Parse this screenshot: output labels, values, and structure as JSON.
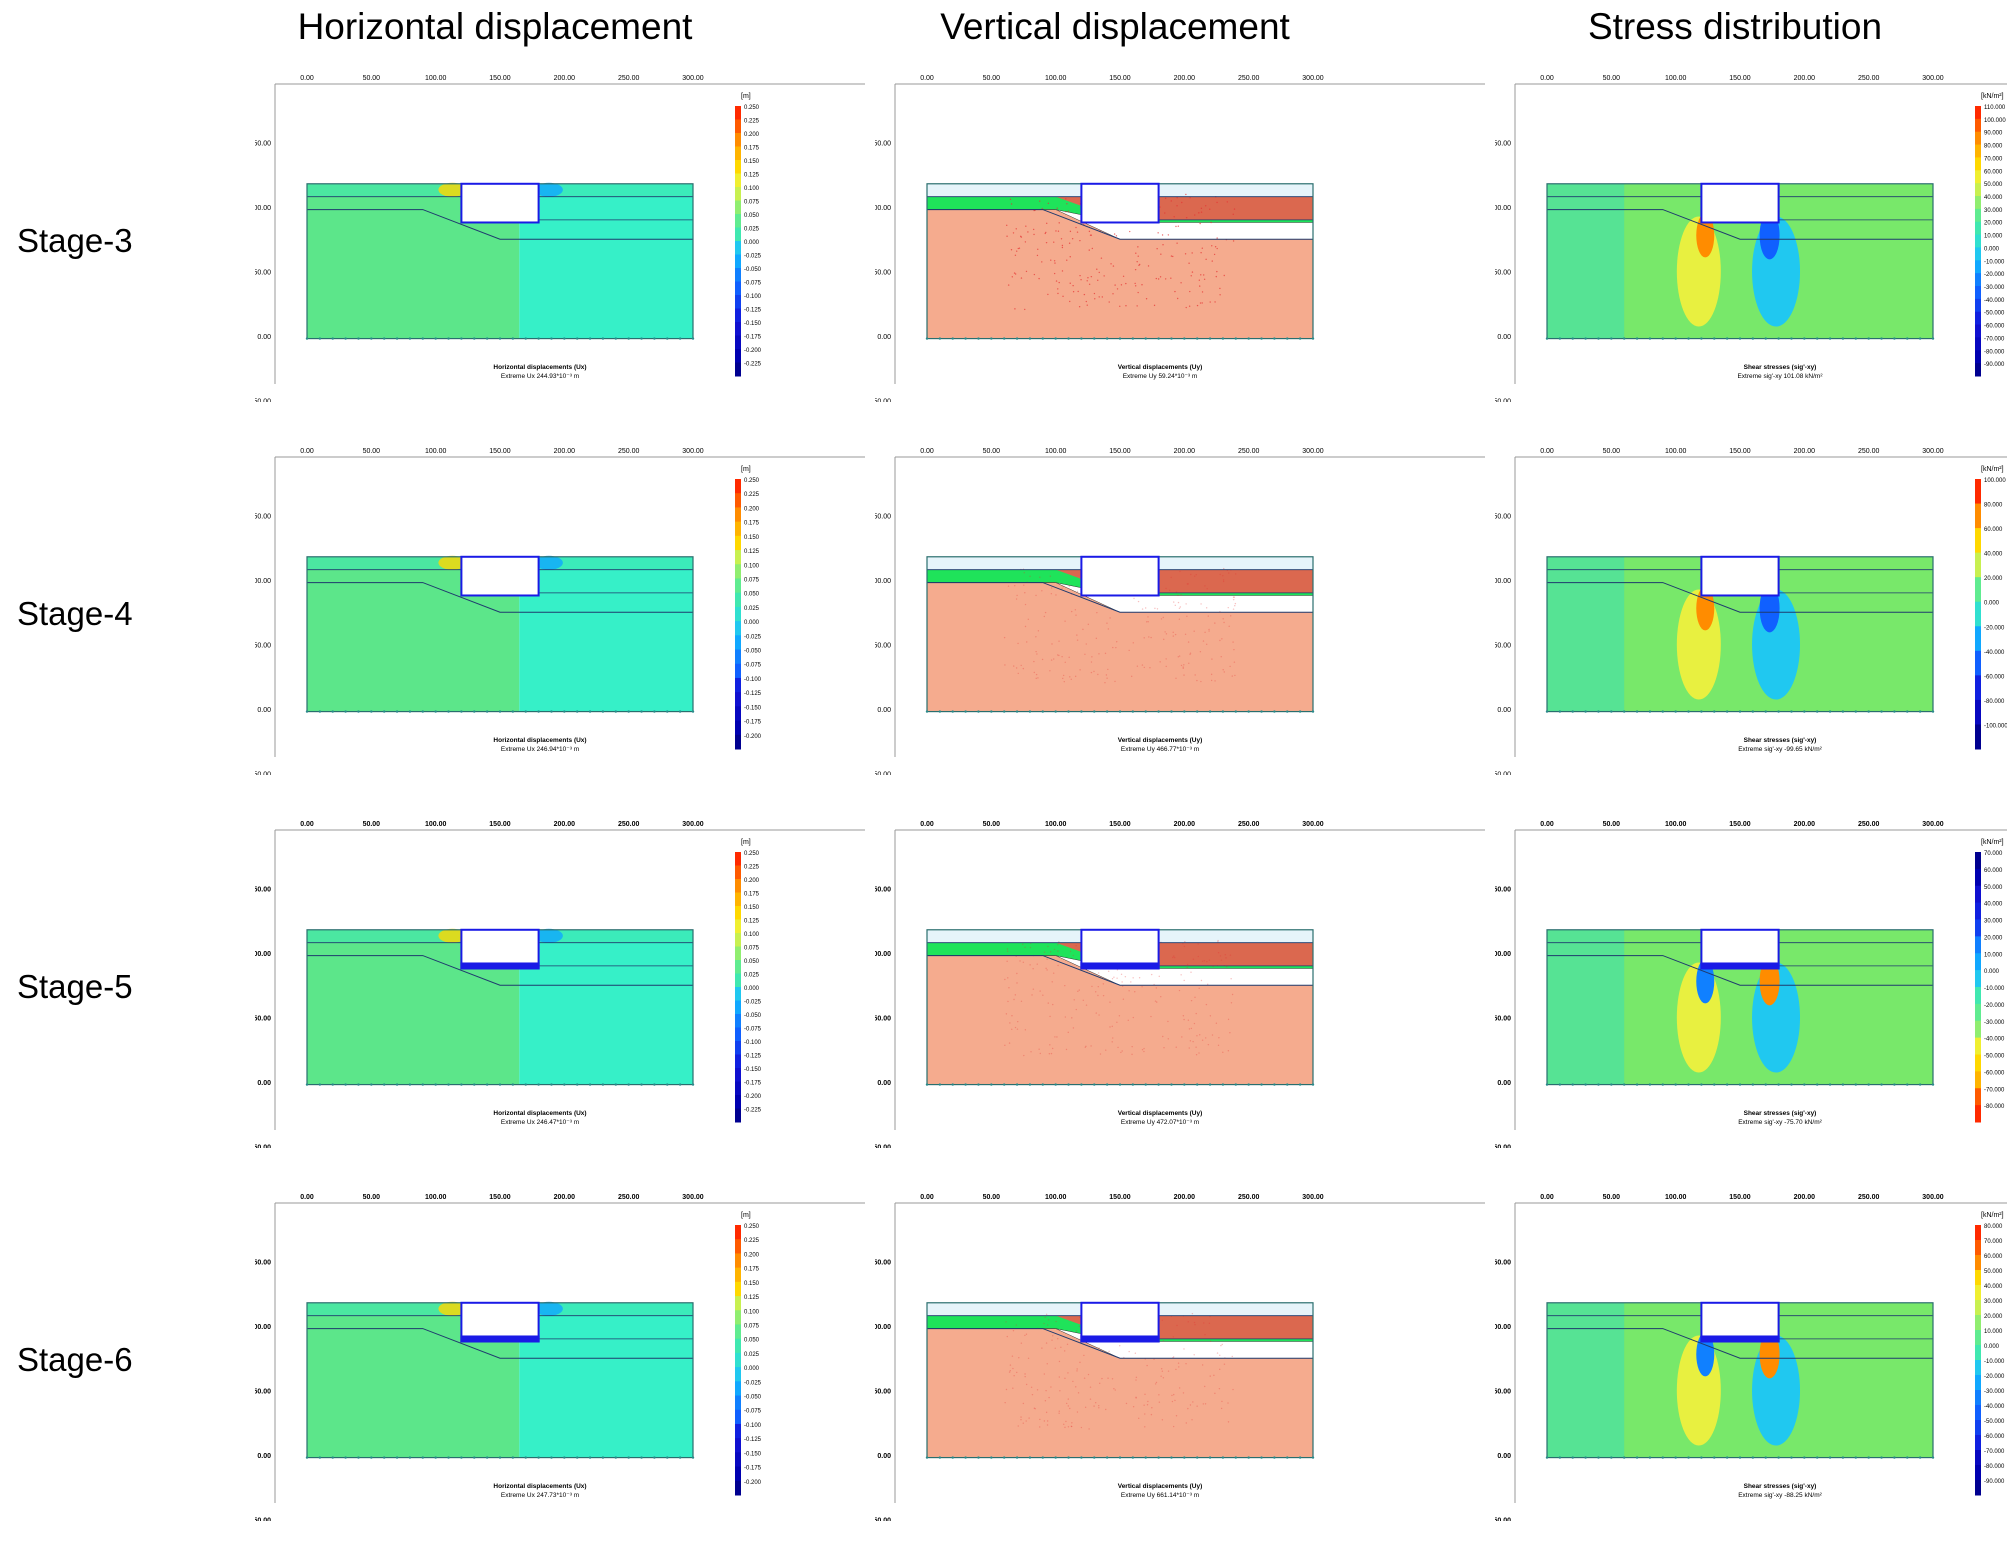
{
  "columns": [
    "Horizontal displacement",
    "Vertical displacement",
    "Stress distribution"
  ],
  "stages": [
    "Stage-3",
    "Stage-4",
    "Stage-5",
    "Stage-6"
  ],
  "axis": {
    "x_ticks": [
      "0.00",
      "50.00",
      "100.00",
      "150.00",
      "200.00",
      "250.00",
      "300.00"
    ],
    "y_ticks": [
      "150.00",
      "100.00",
      "50.00",
      "0.00",
      "-50.00"
    ]
  },
  "colors": {
    "blue_struct": "#1a1ae6",
    "soil_green": "#1fe35a",
    "soil_red": "#ef5a4e",
    "soil_salmon": "#f5ab8e",
    "mesh_line": "#555555"
  },
  "panels": [
    [
      {
        "type": "h",
        "unit": "[m]",
        "caption": "Horizontal displacements (Ux)",
        "extreme": "Extreme Ux 244.93*10⁻³ m",
        "legend": [
          "0.250",
          "0.225",
          "0.200",
          "0.175",
          "0.150",
          "0.125",
          "0.100",
          "0.075",
          "0.050",
          "0.025",
          "0.000",
          "-0.025",
          "-0.050",
          "-0.075",
          "-0.100",
          "-0.125",
          "-0.150",
          "-0.175",
          "-0.200",
          "-0.225"
        ]
      },
      {
        "type": "v",
        "caption": "Vertical displacements (Uy)",
        "extreme": "Extreme Uy 59.24*10⁻³ m"
      },
      {
        "type": "s",
        "unit": "[kN/m²]",
        "caption": "Shear stresses (sig'-xy)",
        "extreme": "Extreme sig'-xy 101.08 kN/m²",
        "legend": [
          "110.000",
          "100.000",
          "90.000",
          "80.000",
          "70.000",
          "60.000",
          "50.000",
          "40.000",
          "30.000",
          "20.000",
          "10.000",
          "0.000",
          "-10.000",
          "-20.000",
          "-30.000",
          "-40.000",
          "-50.000",
          "-60.000",
          "-70.000",
          "-80.000",
          "-90.000"
        ]
      }
    ],
    [
      {
        "type": "h",
        "unit": "[m]",
        "caption": "Horizontal displacements (Ux)",
        "extreme": "Extreme Ux 246.94*10⁻³ m",
        "legend": [
          "0.250",
          "0.225",
          "0.200",
          "0.175",
          "0.150",
          "0.125",
          "0.100",
          "0.075",
          "0.050",
          "0.025",
          "0.000",
          "-0.025",
          "-0.050",
          "-0.075",
          "-0.100",
          "-0.125",
          "-0.150",
          "-0.175",
          "-0.200"
        ]
      },
      {
        "type": "v",
        "caption": "Vertical displacements (Uy)",
        "extreme": "Extreme Uy 466.77*10⁻³ m"
      },
      {
        "type": "s",
        "unit": "[kN/m²]",
        "caption": "Shear stresses (sig'-xy)",
        "extreme": "Extreme sig'-xy -99.65 kN/m²",
        "legend": [
          "100.000",
          "80.000",
          "60.000",
          "40.000",
          "20.000",
          "0.000",
          "-20.000",
          "-40.000",
          "-60.000",
          "-80.000",
          "-100.000"
        ]
      }
    ],
    [
      {
        "type": "h",
        "unit": "[m]",
        "caption": "Horizontal displacements (Ux)",
        "extreme": "Extreme Ux 246.47*10⁻³ m",
        "legend": [
          "0.250",
          "0.225",
          "0.200",
          "0.175",
          "0.150",
          "0.125",
          "0.100",
          "0.075",
          "0.050",
          "0.025",
          "0.000",
          "-0.025",
          "-0.050",
          "-0.075",
          "-0.100",
          "-0.125",
          "-0.150",
          "-0.175",
          "-0.200",
          "-0.225"
        ]
      },
      {
        "type": "v",
        "caption": "Vertical displacements (Uy)",
        "extreme": "Extreme Uy 472.07*10⁻³ m"
      },
      {
        "type": "s",
        "unit": "[kN/m²]",
        "caption": "Shear stresses (sig'-xy)",
        "extreme": "Extreme sig'-xy -75.70 kN/m²",
        "legend": [
          "70.000",
          "60.000",
          "50.000",
          "40.000",
          "30.000",
          "20.000",
          "10.000",
          "0.000",
          "-10.000",
          "-20.000",
          "-30.000",
          "-40.000",
          "-50.000",
          "-60.000",
          "-70.000",
          "-80.000"
        ]
      }
    ],
    [
      {
        "type": "h",
        "unit": "[m]",
        "caption": "Horizontal displacements (Ux)",
        "extreme": "Extreme Ux 247.73*10⁻³ m",
        "legend": [
          "0.250",
          "0.225",
          "0.200",
          "0.175",
          "0.150",
          "0.125",
          "0.100",
          "0.075",
          "0.050",
          "0.025",
          "0.000",
          "-0.025",
          "-0.050",
          "-0.075",
          "-0.100",
          "-0.125",
          "-0.150",
          "-0.175",
          "-0.200"
        ]
      },
      {
        "type": "v",
        "caption": "Vertical displacements (Uy)",
        "extreme": "Extreme Uy 661.14*10⁻³ m"
      },
      {
        "type": "s",
        "unit": "[kN/m²]",
        "caption": "Shear stresses (sig'-xy)",
        "extreme": "Extreme sig'-xy -88.25 kN/m²",
        "legend": [
          "80.000",
          "70.000",
          "60.000",
          "50.000",
          "40.000",
          "30.000",
          "20.000",
          "10.000",
          "0.000",
          "-10.000",
          "-20.000",
          "-30.000",
          "-40.000",
          "-50.000",
          "-60.000",
          "-70.000",
          "-80.000",
          "-90.000"
        ]
      }
    ]
  ]
}
